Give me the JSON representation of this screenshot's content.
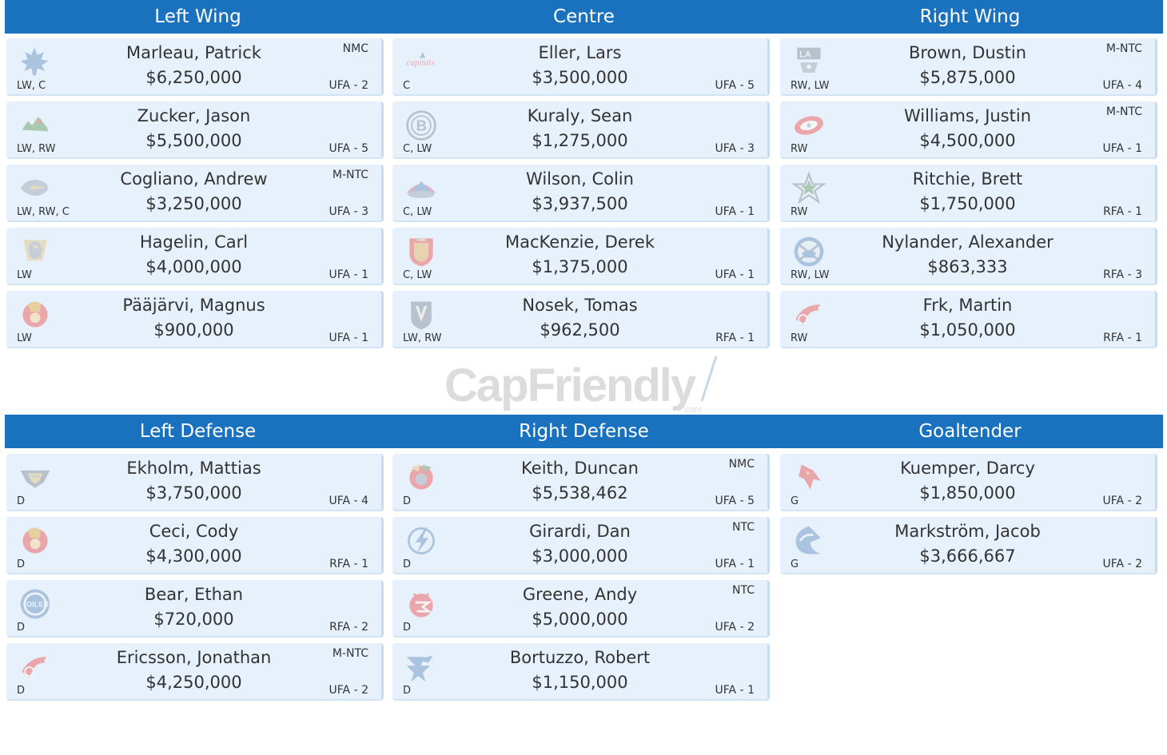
{
  "headers_top": [
    "Left Wing",
    "Centre",
    "Right Wing"
  ],
  "headers_bottom": [
    "Left Defense",
    "Right Defense",
    "Goaltender"
  ],
  "watermark": {
    "text": "CapFriendly",
    "subtext": ".com",
    "color": "#d9d9d9",
    "accent": "#b9cde0"
  },
  "colors": {
    "header_bg": "#1a72bf",
    "card_bg": "#e6f1fb",
    "logo_gray": "#c5ced8",
    "logo_red": "#e9a7ab",
    "logo_blue": "#aac4e0"
  },
  "groups": {
    "left_wing": [
      {
        "name": "Marleau, Patrick",
        "salary": "$6,250,000",
        "pos": "LW, C",
        "clause": "NMC",
        "expiry": "UFA - 2",
        "icon": "maple-leafs-icon"
      },
      {
        "name": "Zucker, Jason",
        "salary": "$5,500,000",
        "pos": "LW, RW",
        "clause": "",
        "expiry": "UFA - 5",
        "icon": "wild-icon"
      },
      {
        "name": "Cogliano, Andrew",
        "salary": "$3,250,000",
        "pos": "LW, RW, C",
        "clause": "M-NTC",
        "expiry": "UFA - 3",
        "icon": "ducks-icon"
      },
      {
        "name": "Hagelin, Carl",
        "salary": "$4,000,000",
        "pos": "LW",
        "clause": "",
        "expiry": "UFA - 1",
        "icon": "penguins-icon"
      },
      {
        "name": "Pääjärvi, Magnus",
        "salary": "$900,000",
        "pos": "LW",
        "clause": "",
        "expiry": "UFA - 1",
        "icon": "senators-icon"
      }
    ],
    "centre": [
      {
        "name": "Eller, Lars",
        "salary": "$3,500,000",
        "pos": "C",
        "clause": "",
        "expiry": "UFA - 5",
        "icon": "capitals-icon"
      },
      {
        "name": "Kuraly, Sean",
        "salary": "$1,275,000",
        "pos": "C, LW",
        "clause": "",
        "expiry": "UFA - 3",
        "icon": "bruins-icon"
      },
      {
        "name": "Wilson, Colin",
        "salary": "$3,937,500",
        "pos": "C, LW",
        "clause": "",
        "expiry": "UFA - 1",
        "icon": "avalanche-icon"
      },
      {
        "name": "MacKenzie, Derek",
        "salary": "$1,375,000",
        "pos": "C, LW",
        "clause": "",
        "expiry": "UFA - 1",
        "icon": "panthers-icon"
      },
      {
        "name": "Nosek, Tomas",
        "salary": "$962,500",
        "pos": "LW, RW",
        "clause": "",
        "expiry": "RFA - 1",
        "icon": "golden-knights-icon"
      }
    ],
    "right_wing": [
      {
        "name": "Brown, Dustin",
        "salary": "$5,875,000",
        "pos": "RW, LW",
        "clause": "M-NTC",
        "expiry": "UFA - 4",
        "icon": "kings-icon"
      },
      {
        "name": "Williams, Justin",
        "salary": "$4,500,000",
        "pos": "RW",
        "clause": "M-NTC",
        "expiry": "UFA - 1",
        "icon": "hurricanes-icon"
      },
      {
        "name": "Ritchie, Brett",
        "salary": "$1,750,000",
        "pos": "RW",
        "clause": "",
        "expiry": "RFA - 1",
        "icon": "stars-icon"
      },
      {
        "name": "Nylander, Alexander",
        "salary": "$863,333",
        "pos": "RW, LW",
        "clause": "",
        "expiry": "RFA - 3",
        "icon": "sabres-icon"
      },
      {
        "name": "Frk, Martin",
        "salary": "$1,050,000",
        "pos": "RW",
        "clause": "",
        "expiry": "RFA - 1",
        "icon": "red-wings-icon"
      }
    ],
    "left_defense": [
      {
        "name": "Ekholm, Mattias",
        "salary": "$3,750,000",
        "pos": "D",
        "clause": "",
        "expiry": "UFA - 4",
        "icon": "predators-icon"
      },
      {
        "name": "Ceci, Cody",
        "salary": "$4,300,000",
        "pos": "D",
        "clause": "",
        "expiry": "RFA - 1",
        "icon": "senators-icon"
      },
      {
        "name": "Bear, Ethan",
        "salary": "$720,000",
        "pos": "D",
        "clause": "",
        "expiry": "RFA - 2",
        "icon": "oilers-icon"
      },
      {
        "name": "Ericsson, Jonathan",
        "salary": "$4,250,000",
        "pos": "D",
        "clause": "M-NTC",
        "expiry": "UFA - 2",
        "icon": "red-wings-icon"
      }
    ],
    "right_defense": [
      {
        "name": "Keith, Duncan",
        "salary": "$5,538,462",
        "pos": "D",
        "clause": "NMC",
        "expiry": "UFA - 5",
        "icon": "blackhawks-icon"
      },
      {
        "name": "Girardi, Dan",
        "salary": "$3,000,000",
        "pos": "D",
        "clause": "NTC",
        "expiry": "UFA - 1",
        "icon": "lightning-icon"
      },
      {
        "name": "Greene, Andy",
        "salary": "$5,000,000",
        "pos": "D",
        "clause": "NTC",
        "expiry": "UFA - 2",
        "icon": "devils-icon"
      },
      {
        "name": "Bortuzzo, Robert",
        "salary": "$1,150,000",
        "pos": "D",
        "clause": "",
        "expiry": "UFA - 1",
        "icon": "blues-icon"
      }
    ],
    "goaltender": [
      {
        "name": "Kuemper, Darcy",
        "salary": "$1,850,000",
        "pos": "G",
        "clause": "",
        "expiry": "UFA - 2",
        "icon": "coyotes-icon"
      },
      {
        "name": "Markström, Jacob",
        "salary": "$3,666,667",
        "pos": "G",
        "clause": "",
        "expiry": "UFA - 2",
        "icon": "canucks-icon"
      }
    ]
  }
}
